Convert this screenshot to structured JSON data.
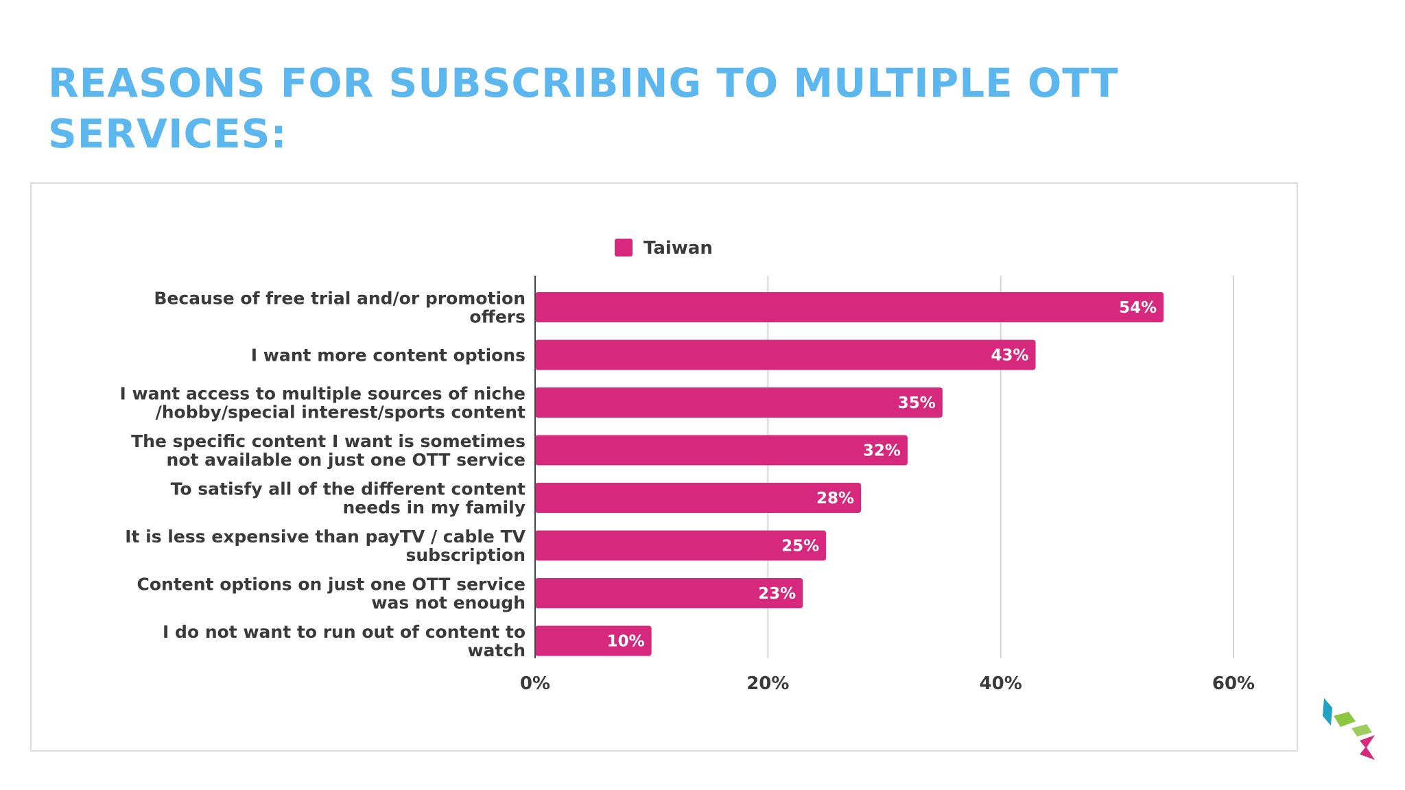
{
  "slide": {
    "title": "REASONS FOR SUBSCRIBING TO MULTIPLE OTT SERVICES:"
  },
  "colors": {
    "title": "#5bb7ee",
    "bar": "#d6287c",
    "grid": "#d4d4d4",
    "axis": "#444444",
    "text": "#3a3a3a",
    "logo": [
      "#1fa2c4",
      "#8dc63f",
      "#d6287c"
    ]
  },
  "logo": {
    "icon": "brand-logo-icon"
  },
  "chart_data": {
    "type": "bar",
    "orientation": "horizontal",
    "categories": [
      [
        "Because of free trial and/or promotion",
        "offers"
      ],
      [
        "I want more content options"
      ],
      [
        "I want access to multiple sources of niche",
        "/hobby/special interest/sports content"
      ],
      [
        "The specific content I want is sometimes",
        "not available on just one OTT service"
      ],
      [
        "To satisfy all of the different content",
        "needs in my family"
      ],
      [
        "It is less expensive than payTV / cable TV",
        "subscription"
      ],
      [
        "Content options on just one OTT service",
        "was not enough"
      ],
      [
        "I do not want to run out of content to",
        "watch"
      ]
    ],
    "series": [
      {
        "name": "Taiwan",
        "values": [
          54,
          43,
          35,
          32,
          28,
          25,
          23,
          10
        ]
      }
    ],
    "value_labels": [
      "54%",
      "43%",
      "35%",
      "32%",
      "28%",
      "25%",
      "23%",
      "10%"
    ],
    "xticks": [
      0,
      20,
      40,
      60
    ],
    "xtick_labels": [
      "0%",
      "20%",
      "40%",
      "60%"
    ],
    "xlim": [
      0,
      60
    ],
    "grid": true,
    "legend": "top-center"
  }
}
